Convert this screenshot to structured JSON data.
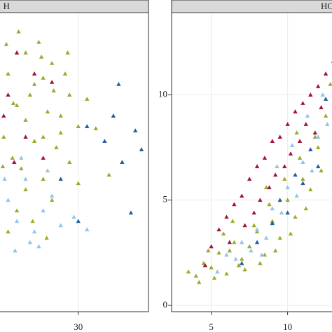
{
  "chart_data": [
    {
      "type": "scatter",
      "title": "H",
      "xlim": [
        21,
        38
      ],
      "ylim": [
        -0.3,
        13.9
      ],
      "xticks": [
        30
      ],
      "grid": true,
      "series": [
        {
          "color": "#9aab2a",
          "x": [
            22,
            23,
            24,
            25,
            26,
            27,
            28,
            29,
            30,
            31,
            22.5,
            23.5,
            24.5,
            25.5,
            26.5,
            27.5,
            28.5,
            21.5,
            24,
            26,
            23,
            25,
            27,
            29,
            22,
            24,
            26,
            28,
            30,
            21.8,
            23.2,
            25.8,
            27.2,
            24.8,
            26.4,
            22.6,
            28.8,
            32,
            33.5,
            21.4
          ],
          "y": [
            11,
            9.5,
            12,
            10.5,
            8,
            11.5,
            9,
            10,
            8.5,
            9.8,
            7,
            6.5,
            10,
            12.5,
            9.2,
            7.5,
            11,
            8,
            5.5,
            6,
            4.5,
            7.8,
            5,
            6.8,
            3.5,
            8.8,
            10.8,
            8.2,
            5.8,
            12.4,
            13,
            11.8,
            10.2,
            4,
            3.2,
            9.6,
            12,
            8.4,
            6.2,
            6.6
          ]
        },
        {
          "color": "#8ec5e8",
          "x": [
            22,
            23,
            24,
            25,
            26,
            27,
            28,
            23.5,
            25.5,
            21.6,
            29.5,
            24.5,
            26.5,
            22.8,
            31
          ],
          "y": [
            5,
            4,
            6,
            3.5,
            4.5,
            5.2,
            3.8,
            7,
            2.8,
            6,
            4.2,
            3,
            6.4,
            2.6,
            3.6
          ]
        },
        {
          "color": "#1f5f99",
          "x": [
            31,
            33,
            34,
            36.5,
            37.2,
            35,
            28,
            30,
            36,
            34.6
          ],
          "y": [
            8.5,
            7.8,
            9,
            8.3,
            7.4,
            6.8,
            6,
            4,
            4.4,
            10.5
          ]
        },
        {
          "color": "#a3123a",
          "x": [
            22,
            24,
            23,
            26,
            25,
            21.5,
            27,
            22.7
          ],
          "y": [
            10,
            8,
            12,
            7,
            11,
            9,
            10.6,
            6.8
          ]
        }
      ]
    },
    {
      "type": "scatter",
      "title": "HC",
      "xlim": [
        2.4,
        13
      ],
      "ylim": [
        -0.3,
        13.9
      ],
      "xticks": [
        5,
        10
      ],
      "yticks": [
        0,
        5,
        10
      ],
      "grid": true,
      "series": [
        {
          "color": "#9aab2a",
          "x": [
            3.5,
            4,
            4.5,
            5,
            5.5,
            6,
            6.5,
            7,
            7.5,
            8,
            8.5,
            9,
            9.5,
            10,
            10.5,
            11,
            11.5,
            12,
            12.5,
            4.2,
            5.2,
            6.2,
            7.2,
            8.2,
            9.2,
            10.2,
            11.2,
            12.2,
            4.8,
            5.8,
            6.8,
            7.8,
            8.8,
            9.8,
            10.8,
            11.8,
            12.8,
            6.4,
            8.6,
            10.6
          ],
          "y": [
            1.6,
            1.4,
            2,
            1.8,
            2.5,
            1.5,
            3,
            2.2,
            2.8,
            3.5,
            2.4,
            4,
            3.2,
            5,
            4.2,
            6,
            5.5,
            7.5,
            9,
            1.1,
            1.3,
            2.6,
            1.7,
            2,
            2.6,
            3.4,
            4.6,
            6.4,
            2.6,
            3.4,
            1.9,
            3.8,
            4.8,
            6,
            7,
            8,
            10.5,
            4,
            5.6,
            8.2
          ]
        },
        {
          "color": "#a3123a",
          "x": [
            5,
            5.5,
            6,
            6.5,
            7,
            7.5,
            8,
            8.5,
            9,
            9.5,
            10,
            10.5,
            11,
            11.5,
            12,
            12.5,
            6.2,
            7.2,
            8.2,
            9.2,
            10.2,
            11.2,
            12.2,
            7.8,
            8.8,
            9.8,
            10.8,
            11.8,
            4.6,
            13
          ],
          "y": [
            2.8,
            3.6,
            4.2,
            4.8,
            5.2,
            6,
            6.6,
            7,
            7.8,
            8,
            8.6,
            9.2,
            9.6,
            10,
            10.4,
            11,
            3,
            3.8,
            5,
            6.2,
            7.2,
            8.6,
            9.4,
            4.4,
            5.6,
            6.6,
            7.8,
            8.2,
            1.9,
            11.6
          ]
        },
        {
          "color": "#8ec5e8",
          "x": [
            6,
            7,
            8,
            9,
            10,
            11,
            12,
            6.6,
            7.6,
            8.6,
            9.6,
            10.6,
            11.6,
            12.6,
            5.4,
            9.3,
            10.3,
            11.3,
            8.3,
            12.3
          ],
          "y": [
            2.4,
            3,
            3.6,
            4.6,
            5.6,
            6.8,
            8,
            2.2,
            2.6,
            3.2,
            4.4,
            5.2,
            6.4,
            8.6,
            1.6,
            6.6,
            7.6,
            9,
            2.4,
            10
          ]
        },
        {
          "color": "#1f5f99",
          "x": [
            7,
            8,
            9,
            10,
            11,
            12,
            9.5,
            10.5,
            11.5,
            12.5
          ],
          "y": [
            2,
            3,
            3.9,
            4.4,
            5.8,
            6.6,
            5,
            6.2,
            7.4,
            9.8
          ]
        }
      ]
    }
  ]
}
